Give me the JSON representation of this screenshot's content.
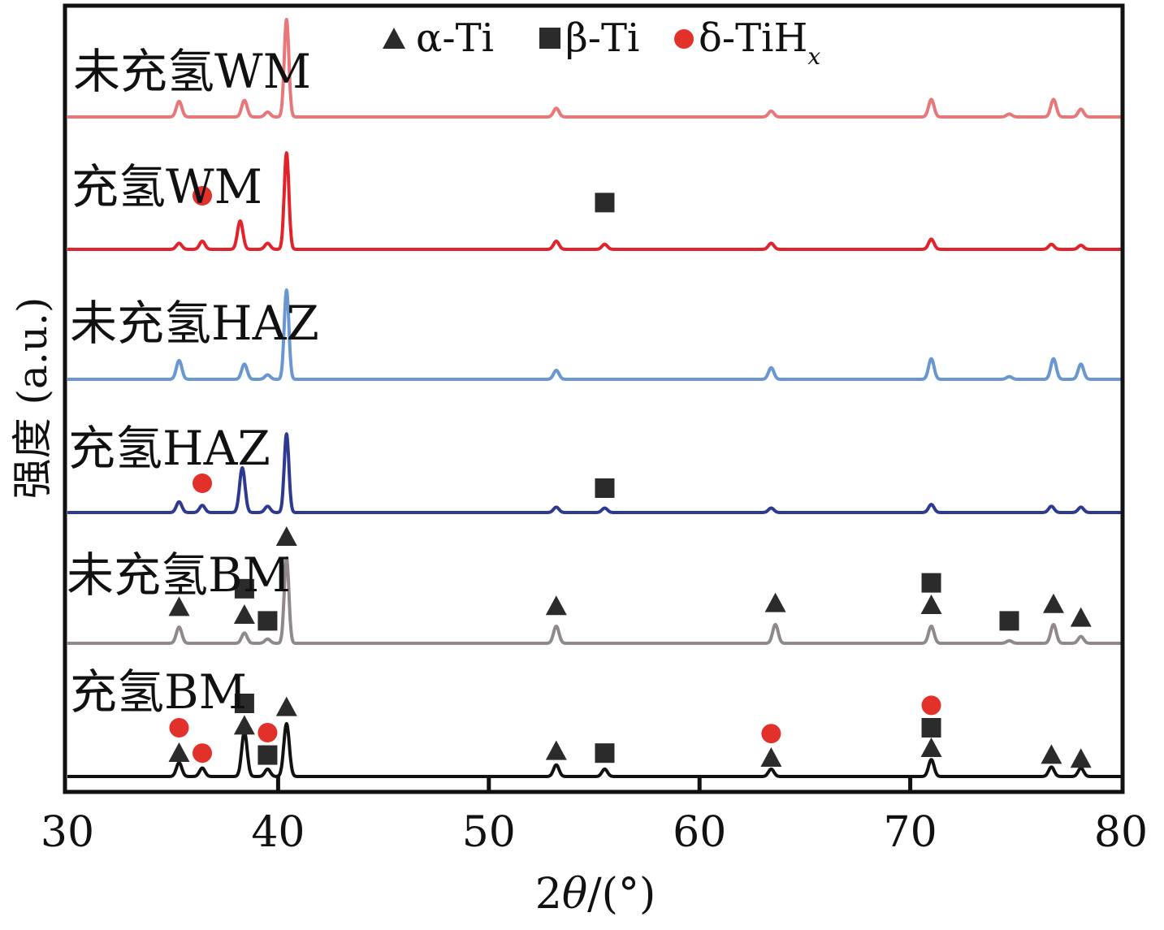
{
  "chart_data": {
    "type": "line",
    "title": "",
    "xlabel_prefix": "2",
    "xlabel_theta": "θ",
    "xlabel_unit": "/(°)",
    "ylabel": "强度 (a.u.)",
    "xlim": [
      30,
      80
    ],
    "xticks": [
      30,
      40,
      50,
      60,
      70,
      80
    ],
    "legend": {
      "placement": "top-center",
      "entries": [
        {
          "marker": "triangle",
          "label": "α-Ti",
          "color": "#2b2b2b"
        },
        {
          "marker": "square",
          "label": "β-Ti",
          "color": "#2b2b2b"
        },
        {
          "marker": "circle",
          "label": "δ-TiH",
          "subscript": "x",
          "color": "#e2302a"
        }
      ]
    },
    "series": [
      {
        "name": "未充氢WM",
        "color": "#e8777a",
        "peaks": [
          {
            "x": 35.3,
            "h": 0.16
          },
          {
            "x": 38.4,
            "h": 0.17
          },
          {
            "x": 39.5,
            "h": 0.05
          },
          {
            "x": 40.4,
            "h": 1.0
          },
          {
            "x": 53.2,
            "h": 0.09
          },
          {
            "x": 63.4,
            "h": 0.06
          },
          {
            "x": 71.0,
            "h": 0.18
          },
          {
            "x": 74.7,
            "h": 0.03
          },
          {
            "x": 76.8,
            "h": 0.18
          },
          {
            "x": 78.1,
            "h": 0.08
          }
        ],
        "markers": []
      },
      {
        "name": "充氢WM",
        "color": "#e1242b",
        "peaks": [
          {
            "x": 35.3,
            "h": 0.06
          },
          {
            "x": 36.4,
            "h": 0.08
          },
          {
            "x": 38.2,
            "h": 0.28
          },
          {
            "x": 39.5,
            "h": 0.06
          },
          {
            "x": 40.4,
            "h": 0.95
          },
          {
            "x": 53.2,
            "h": 0.08
          },
          {
            "x": 55.5,
            "h": 0.05
          },
          {
            "x": 63.4,
            "h": 0.06
          },
          {
            "x": 71.0,
            "h": 0.1
          },
          {
            "x": 76.7,
            "h": 0.05
          },
          {
            "x": 78.1,
            "h": 0.04
          }
        ],
        "markers": [
          {
            "x": 36.4,
            "type": "circle",
            "level": 0.55
          },
          {
            "x": 55.5,
            "type": "square",
            "level": 0.48
          }
        ]
      },
      {
        "name": "未充氢HAZ",
        "color": "#6a97cf",
        "peaks": [
          {
            "x": 35.3,
            "h": 0.21
          },
          {
            "x": 38.4,
            "h": 0.17
          },
          {
            "x": 39.5,
            "h": 0.05
          },
          {
            "x": 40.4,
            "h": 1.0
          },
          {
            "x": 53.2,
            "h": 0.1
          },
          {
            "x": 63.4,
            "h": 0.13
          },
          {
            "x": 71.0,
            "h": 0.23
          },
          {
            "x": 74.7,
            "h": 0.03
          },
          {
            "x": 76.8,
            "h": 0.23
          },
          {
            "x": 78.1,
            "h": 0.17
          }
        ],
        "markers": []
      },
      {
        "name": "充氢HAZ",
        "color": "#2e3a91",
        "peaks": [
          {
            "x": 35.3,
            "h": 0.12
          },
          {
            "x": 36.4,
            "h": 0.08
          },
          {
            "x": 38.3,
            "h": 0.5
          },
          {
            "x": 39.5,
            "h": 0.07
          },
          {
            "x": 40.4,
            "h": 0.88
          },
          {
            "x": 53.2,
            "h": 0.06
          },
          {
            "x": 55.5,
            "h": 0.05
          },
          {
            "x": 63.4,
            "h": 0.05
          },
          {
            "x": 71.0,
            "h": 0.09
          },
          {
            "x": 76.7,
            "h": 0.07
          },
          {
            "x": 78.1,
            "h": 0.06
          }
        ],
        "markers": [
          {
            "x": 36.4,
            "type": "circle",
            "level": 0.3
          },
          {
            "x": 55.5,
            "type": "square",
            "level": 0.25
          }
        ]
      },
      {
        "name": "未充氢BM",
        "color": "#8f8a89",
        "peaks": [
          {
            "x": 35.3,
            "h": 0.19
          },
          {
            "x": 38.4,
            "h": 0.12
          },
          {
            "x": 39.5,
            "h": 0.05
          },
          {
            "x": 40.4,
            "h": 1.0
          },
          {
            "x": 53.2,
            "h": 0.2
          },
          {
            "x": 63.6,
            "h": 0.22
          },
          {
            "x": 71.0,
            "h": 0.2
          },
          {
            "x": 74.7,
            "h": 0.03
          },
          {
            "x": 76.8,
            "h": 0.22
          },
          {
            "x": 78.1,
            "h": 0.08
          }
        ],
        "markers": [
          {
            "x": 35.3,
            "type": "triangle",
            "level": 0.38
          },
          {
            "x": 38.4,
            "type": "triangle",
            "level": 0.3
          },
          {
            "x": 38.4,
            "type": "square",
            "level": 0.56
          },
          {
            "x": 39.5,
            "type": "square",
            "level": 0.23
          },
          {
            "x": 40.4,
            "type": "triangle",
            "level": 1.1
          },
          {
            "x": 53.2,
            "type": "triangle",
            "level": 0.39
          },
          {
            "x": 63.6,
            "type": "triangle",
            "level": 0.42
          },
          {
            "x": 71.0,
            "type": "triangle",
            "level": 0.4
          },
          {
            "x": 71.0,
            "type": "square",
            "level": 0.62
          },
          {
            "x": 74.7,
            "type": "square",
            "level": 0.23
          },
          {
            "x": 76.8,
            "type": "triangle",
            "level": 0.41
          },
          {
            "x": 78.1,
            "type": "triangle",
            "level": 0.27
          }
        ]
      },
      {
        "name": "充氢BM",
        "color": "#111111",
        "peaks": [
          {
            "x": 35.3,
            "h": 0.13
          },
          {
            "x": 36.4,
            "h": 0.08
          },
          {
            "x": 38.4,
            "h": 0.42
          },
          {
            "x": 39.5,
            "h": 0.07
          },
          {
            "x": 40.4,
            "h": 0.5
          },
          {
            "x": 53.2,
            "h": 0.11
          },
          {
            "x": 55.5,
            "h": 0.07
          },
          {
            "x": 63.4,
            "h": 0.07
          },
          {
            "x": 71.0,
            "h": 0.16
          },
          {
            "x": 76.7,
            "h": 0.09
          },
          {
            "x": 78.1,
            "h": 0.08
          }
        ],
        "markers": [
          {
            "x": 35.3,
            "type": "triangle",
            "level": 0.25
          },
          {
            "x": 35.3,
            "type": "circle",
            "level": 0.5
          },
          {
            "x": 36.4,
            "type": "circle",
            "level": 0.24
          },
          {
            "x": 38.4,
            "type": "triangle",
            "level": 0.53
          },
          {
            "x": 38.4,
            "type": "square",
            "level": 0.75
          },
          {
            "x": 39.5,
            "type": "circle",
            "level": 0.45
          },
          {
            "x": 39.5,
            "type": "square",
            "level": 0.22
          },
          {
            "x": 40.4,
            "type": "triangle",
            "level": 0.72
          },
          {
            "x": 53.2,
            "type": "triangle",
            "level": 0.27
          },
          {
            "x": 55.5,
            "type": "square",
            "level": 0.24
          },
          {
            "x": 63.4,
            "type": "circle",
            "level": 0.44
          },
          {
            "x": 63.4,
            "type": "triangle",
            "level": 0.2
          },
          {
            "x": 71.0,
            "type": "circle",
            "level": 0.73
          },
          {
            "x": 71.0,
            "type": "square",
            "level": 0.5
          },
          {
            "x": 71.0,
            "type": "triangle",
            "level": 0.3
          },
          {
            "x": 76.7,
            "type": "triangle",
            "level": 0.23
          },
          {
            "x": 78.1,
            "type": "triangle",
            "level": 0.19
          }
        ]
      }
    ]
  }
}
